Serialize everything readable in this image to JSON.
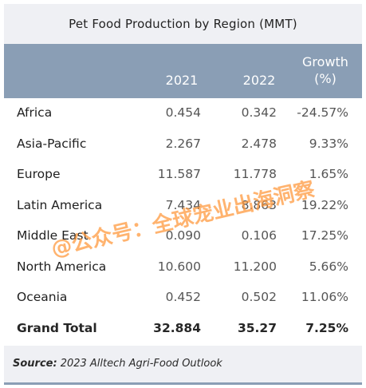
{
  "title": "Pet Food Production by Region (MMT)",
  "columns": {
    "col2021": "2021",
    "col2022": "2022",
    "growth_line1": "Growth",
    "growth_line2": "(%)"
  },
  "rows": [
    {
      "region": "Africa",
      "v2021": "0.454",
      "v2022": "0.342",
      "growth": "-24.57%"
    },
    {
      "region": "Asia-Pacific",
      "v2021": "2.267",
      "v2022": "2.478",
      "growth": "9.33%"
    },
    {
      "region": "Europe",
      "v2021": "11.587",
      "v2022": "11.778",
      "growth": "1.65%"
    },
    {
      "region": "Latin America",
      "v2021": "7.434",
      "v2022": "8.863",
      "growth": "19.22%"
    },
    {
      "region": "Middle East",
      "v2021": "0.090",
      "v2022": "0.106",
      "growth": "17.25%"
    },
    {
      "region": "North America",
      "v2021": "10.600",
      "v2022": "11.200",
      "growth": "5.66%"
    },
    {
      "region": "Oceania",
      "v2021": "0.452",
      "v2022": "0.502",
      "growth": "11.06%"
    }
  ],
  "total": {
    "region": "Grand Total",
    "v2021": "32.884",
    "v2022": "35.27",
    "growth": "7.25%"
  },
  "source": {
    "label": "Source:",
    "text": "2023 Alltech Agri-Food Outlook"
  },
  "watermark": {
    "text": "@公众号：全球宠业出海洞察",
    "color": "#ff9637"
  },
  "colors": {
    "header": "#8a9eb5",
    "panel": "#eff0f4"
  }
}
